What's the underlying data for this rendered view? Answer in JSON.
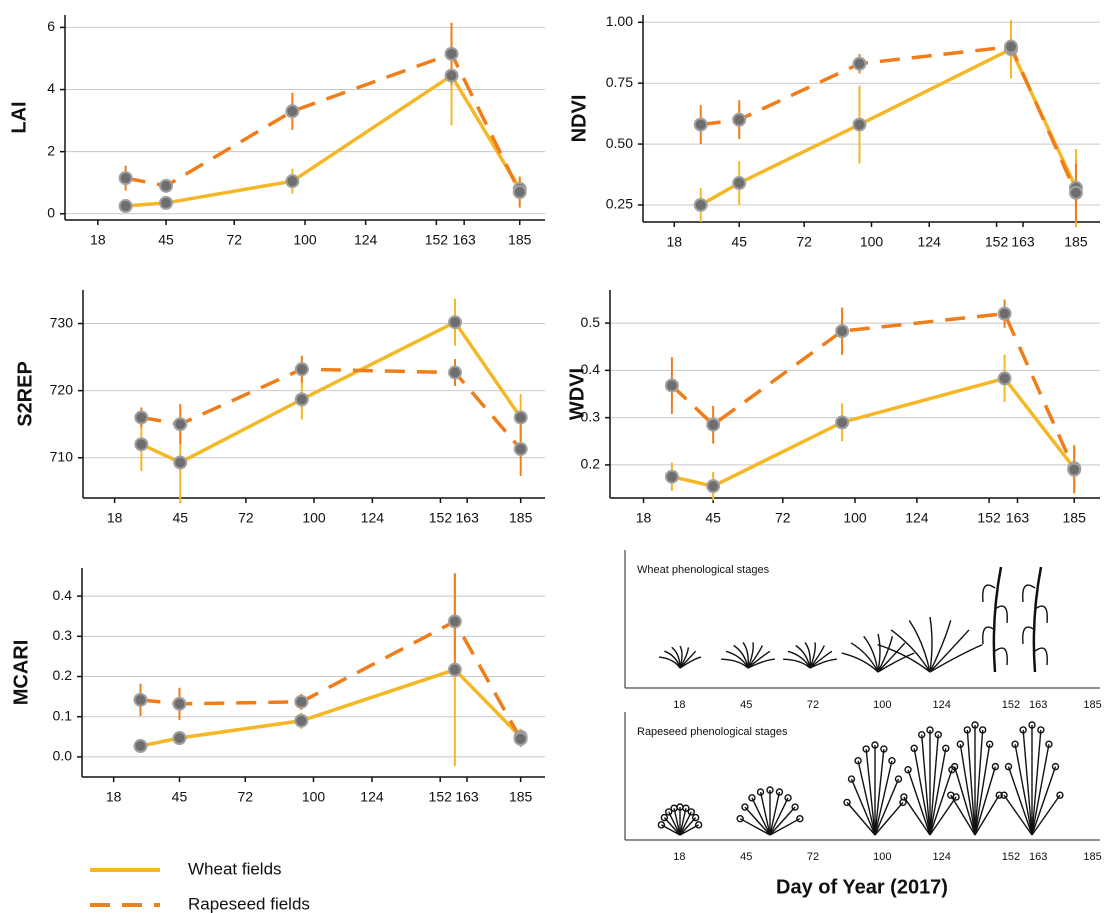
{
  "chart_data": [
    {
      "type": "line",
      "ylabel": "LAI",
      "x": [
        29,
        45,
        95,
        158,
        185
      ],
      "xlim": [
        5,
        195
      ],
      "xticks": [
        18,
        45,
        72,
        100,
        124,
        152,
        163,
        185
      ],
      "ylim": [
        -0.2,
        6.4
      ],
      "yticks": [
        0,
        2,
        4,
        6
      ],
      "grid": true,
      "series": [
        {
          "name": "Wheat fields",
          "color": "#f5b725",
          "dash": false,
          "values": [
            0.25,
            0.35,
            1.05,
            4.45,
            0.8
          ],
          "errors": [
            0.1,
            0.15,
            0.4,
            1.6,
            0.3
          ]
        },
        {
          "name": "Rapeseed fields",
          "color": "#ee7d1a",
          "dash": true,
          "values": [
            1.15,
            0.9,
            3.3,
            5.15,
            0.7
          ],
          "errors": [
            0.4,
            0.2,
            0.6,
            1.0,
            0.5
          ]
        }
      ]
    },
    {
      "type": "line",
      "ylabel": "NDVI",
      "x": [
        29,
        45,
        95,
        158,
        185
      ],
      "xlim": [
        5,
        195
      ],
      "xticks": [
        18,
        45,
        72,
        100,
        124,
        152,
        163,
        185
      ],
      "ylim": [
        0.18,
        1.03
      ],
      "yticks": [
        0.25,
        {
          "value": 0.5,
          "label": "0.50"
        },
        0.75,
        {
          "value": 1,
          "label": "1.00"
        }
      ],
      "grid": true,
      "series": [
        {
          "color": "#f5b725",
          "dash": false,
          "values": [
            0.25,
            0.34,
            0.58,
            0.89,
            0.32
          ],
          "errors": [
            0.07,
            0.09,
            0.16,
            0.12,
            0.16
          ]
        },
        {
          "color": "#ee7d1a",
          "dash": true,
          "values": [
            0.58,
            0.6,
            0.83,
            0.9,
            0.3
          ],
          "errors": [
            0.08,
            0.08,
            0.04,
            0.03,
            0.12
          ]
        }
      ]
    },
    {
      "type": "line",
      "ylabel": "S2REP",
      "x": [
        29,
        45,
        95,
        158,
        185
      ],
      "xlim": [
        5,
        195
      ],
      "xticks": [
        18,
        45,
        72,
        100,
        124,
        152,
        163,
        185
      ],
      "ylim": [
        704,
        735
      ],
      "yticks": [
        710,
        720,
        730
      ],
      "grid": true,
      "series": [
        {
          "color": "#f5b725",
          "dash": false,
          "values": [
            712,
            709.3,
            718.7,
            730.2,
            716
          ],
          "errors": [
            4,
            6,
            3,
            3.5,
            3.5
          ]
        },
        {
          "color": "#ee7d1a",
          "dash": true,
          "values": [
            716,
            715,
            723.2,
            722.7,
            711.3
          ],
          "errors": [
            1.5,
            3,
            2,
            2,
            4
          ]
        }
      ]
    },
    {
      "type": "line",
      "ylabel": "WDVI",
      "x": [
        29,
        45,
        95,
        158,
        185
      ],
      "xlim": [
        5,
        195
      ],
      "xticks": [
        18,
        45,
        72,
        100,
        124,
        152,
        163,
        185
      ],
      "ylim": [
        0.13,
        0.57
      ],
      "yticks": [
        0.2,
        0.3,
        0.4,
        0.5
      ],
      "grid": true,
      "series": [
        {
          "color": "#f5b725",
          "dash": false,
          "values": [
            0.175,
            0.155,
            0.29,
            0.383,
            0.193
          ],
          "errors": [
            0.03,
            0.03,
            0.04,
            0.05,
            0.05
          ]
        },
        {
          "color": "#ee7d1a",
          "dash": true,
          "values": [
            0.368,
            0.285,
            0.483,
            0.52,
            0.19
          ],
          "errors": [
            0.06,
            0.04,
            0.05,
            0.03,
            0.05
          ]
        }
      ]
    },
    {
      "type": "line",
      "ylabel": "MCARI",
      "x": [
        29,
        45,
        95,
        158,
        185
      ],
      "xlim": [
        5,
        195
      ],
      "xticks": [
        18,
        45,
        72,
        100,
        124,
        152,
        163,
        185
      ],
      "ylim": [
        -0.05,
        0.47
      ],
      "yticks": [
        {
          "value": 0,
          "label": "0.0"
        },
        0.1,
        0.2,
        0.3,
        0.4
      ],
      "grid": true,
      "series": [
        {
          "color": "#f5b725",
          "dash": false,
          "values": [
            0.027,
            0.047,
            0.09,
            0.217,
            0.05
          ],
          "errors": [
            0.01,
            0.01,
            0.02,
            0.24,
            0.02
          ]
        },
        {
          "color": "#ee7d1a",
          "dash": true,
          "values": [
            0.142,
            0.132,
            0.137,
            0.337,
            0.045
          ],
          "errors": [
            0.04,
            0.04,
            0.02,
            0.12,
            0.02
          ]
        }
      ]
    }
  ],
  "phenology": [
    {
      "title": "Wheat phenological stages",
      "xlim": [
        -4,
        188
      ],
      "xticks": [
        18,
        45,
        72,
        100,
        124,
        152,
        163,
        185
      ]
    },
    {
      "title": "Rapeseed phenological stages",
      "xlim": [
        -4,
        188
      ],
      "xticks": [
        18,
        45,
        72,
        100,
        124,
        152,
        163,
        185
      ]
    }
  ],
  "xlabel": "Day of Year (2017)"
}
